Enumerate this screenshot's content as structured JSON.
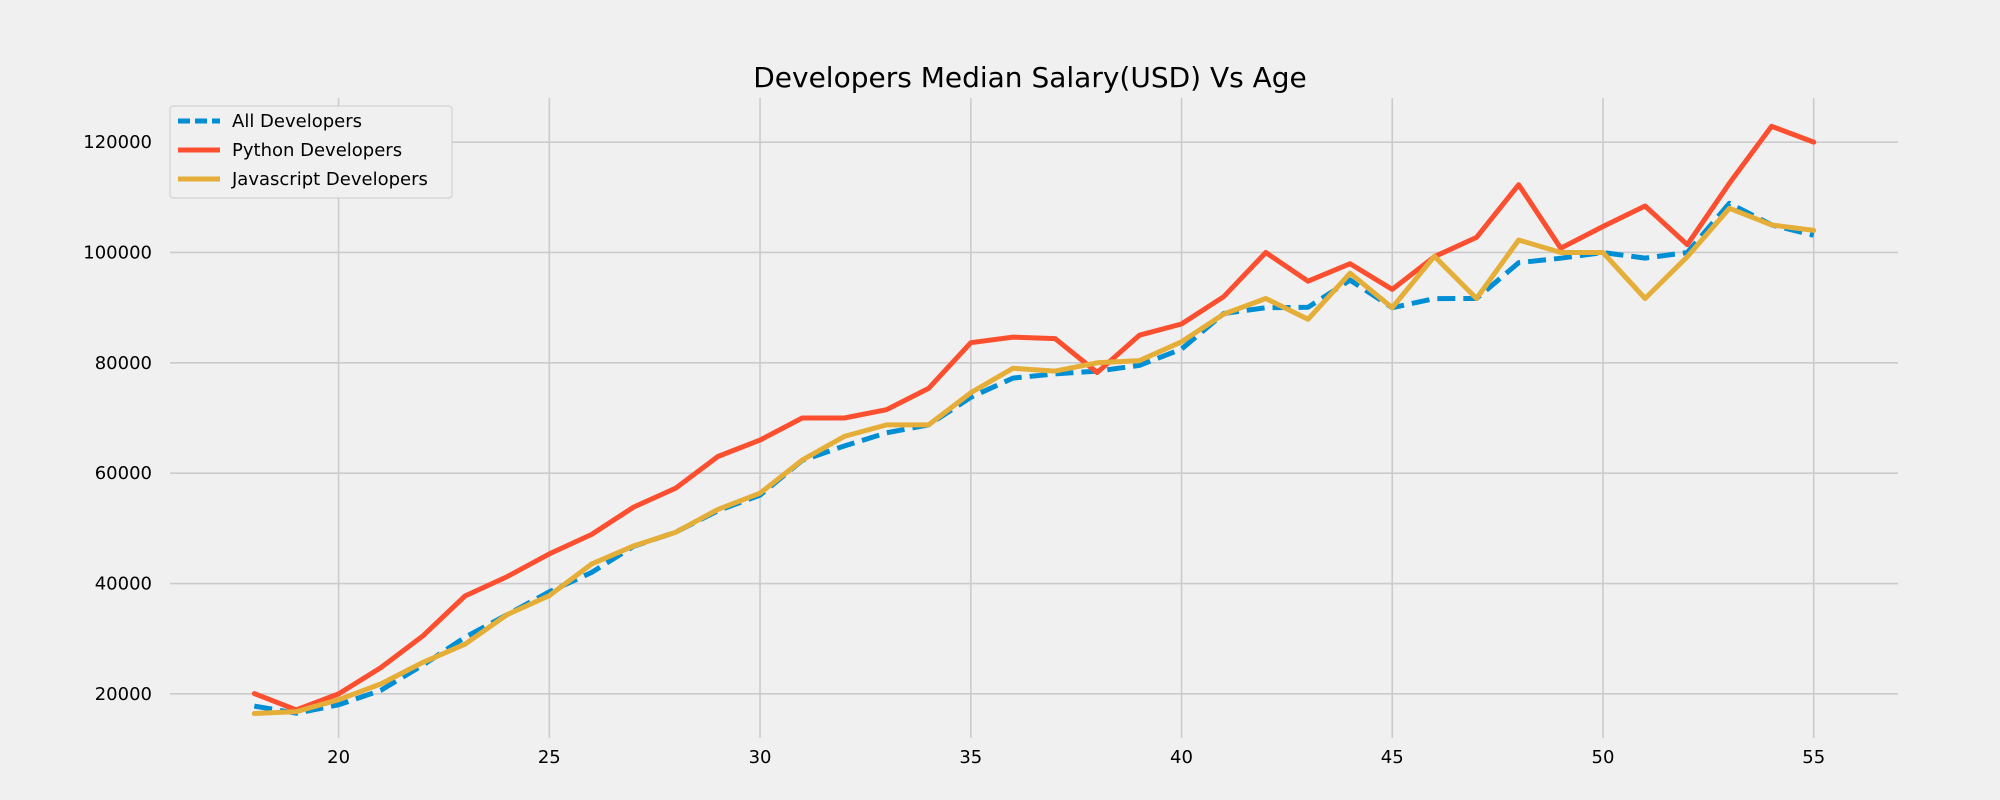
{
  "chart_data": {
    "type": "line",
    "title": "Developers Median Salary(USD) Vs Age",
    "xlabel": "",
    "ylabel": "",
    "xlim": [
      16,
      57
    ],
    "ylim": [
      12000,
      128000
    ],
    "grid": true,
    "legend_position": "top-left",
    "xticks": [
      20,
      25,
      30,
      35,
      40,
      45,
      50,
      55
    ],
    "yticks": [
      20000,
      40000,
      60000,
      80000,
      100000,
      120000
    ],
    "x": [
      18,
      19,
      20,
      21,
      22,
      23,
      24,
      25,
      26,
      27,
      28,
      29,
      30,
      31,
      32,
      33,
      34,
      35,
      36,
      37,
      38,
      39,
      40,
      41,
      42,
      43,
      44,
      45,
      46,
      47,
      48,
      49,
      50,
      51,
      52,
      53,
      54,
      55
    ],
    "series": [
      {
        "name": "All Developers",
        "color": "#008fd5",
        "dash": true,
        "values": [
          17784,
          16500,
          18012,
          20628,
          25206,
          30252,
          34368,
          38496,
          42000,
          46752,
          49320,
          53200,
          56000,
          62316,
          64928,
          67317,
          68748,
          73752,
          77232,
          78000,
          78508,
          79536,
          82488,
          88935,
          90000,
          90056,
          95000,
          90000,
          91633,
          91660,
          98150,
          98964,
          100000,
          98988,
          100000,
          108923,
          105000,
          103117
        ]
      },
      {
        "name": "Python Developers",
        "color": "#fc4f30",
        "dash": false,
        "values": [
          20046,
          17100,
          20000,
          24744,
          30500,
          37732,
          41247,
          45372,
          48876,
          53850,
          57287,
          63016,
          65998,
          70003,
          70000,
          71496,
          75370,
          83640,
          84666,
          84392,
          78254,
          85000,
          87038,
          91991,
          100000,
          94796,
          97962,
          93302,
          99240,
          102736,
          112285,
          100771,
          104708,
          108423,
          101407,
          112542,
          122870,
          120000
        ]
      },
      {
        "name": "Javascript Developers",
        "color": "#e5ae38",
        "dash": false,
        "values": [
          16446,
          16791,
          18942,
          21780,
          25704,
          29000,
          34372,
          37810,
          43515,
          46823,
          49293,
          53437,
          56373,
          62375,
          66674,
          68745,
          68746,
          74583,
          79000,
          78508,
          79996,
          80403,
          83820,
          88833,
          91660,
          87892,
          96243,
          90000,
          99313,
          91660,
          102264,
          100000,
          100000,
          91660,
          99240,
          108000,
          105000,
          104000
        ]
      }
    ]
  }
}
